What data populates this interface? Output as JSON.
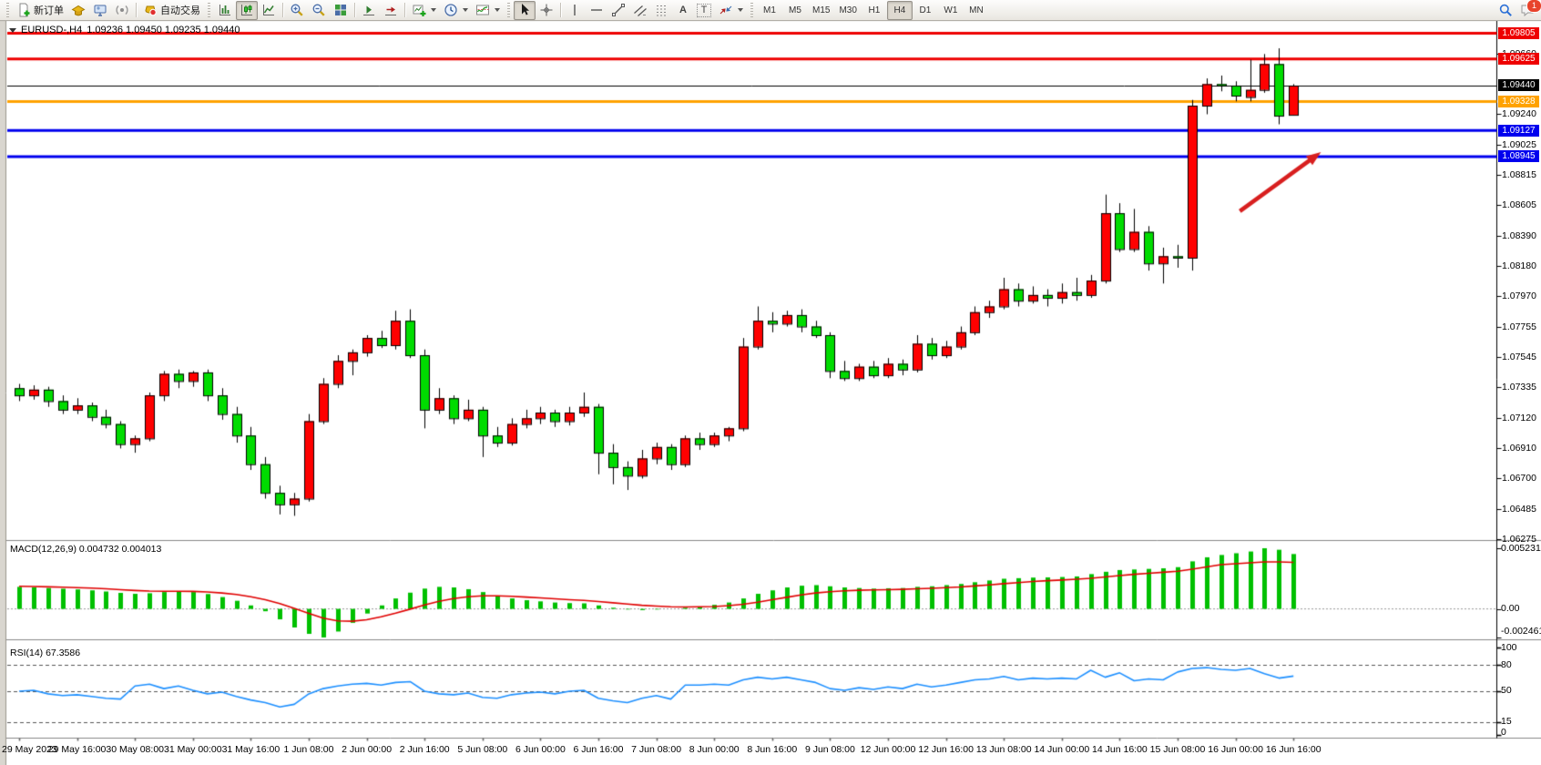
{
  "toolbar": {
    "new_order_label": "新订单",
    "autotrade_label": "自动交易",
    "timeframes": [
      {
        "label": "M1",
        "active": false
      },
      {
        "label": "M5",
        "active": false
      },
      {
        "label": "M15",
        "active": false
      },
      {
        "label": "M30",
        "active": false
      },
      {
        "label": "H1",
        "active": false
      },
      {
        "label": "H4",
        "active": true
      },
      {
        "label": "D1",
        "active": false
      },
      {
        "label": "W1",
        "active": false
      },
      {
        "label": "MN",
        "active": false
      }
    ],
    "notification_count": "1",
    "text_tool_glyph": "A",
    "label_tool_glyph": "T"
  },
  "window": {
    "title_symbol": "EURUSD-,H4",
    "title_ohlc": "1.09236 1.09450 1.09235 1.09440"
  },
  "chart_data": {
    "type": "candlestick",
    "symbol": "EURUSD-",
    "period": "H4",
    "current_bar": {
      "open": "1.09236",
      "high": "1.09450",
      "low": "1.09235",
      "close": "1.09440"
    },
    "price_ticks": [
      "1.09660",
      "1.09240",
      "1.09025",
      "1.08815",
      "1.08605",
      "1.08390",
      "1.08180",
      "1.07970",
      "1.07755",
      "1.07545",
      "1.07335",
      "1.07120",
      "1.06910",
      "1.06700",
      "1.06485",
      "1.06275"
    ],
    "levels": [
      {
        "price": "1.09805",
        "value": 1.09805,
        "color": "#ee0000"
      },
      {
        "price": "1.09625",
        "value": 1.09625,
        "color": "#ee0000"
      },
      {
        "price": "1.09328",
        "value": 1.09328,
        "color": "#ffa200"
      },
      {
        "price": "1.09127",
        "value": 1.09127,
        "color": "#0000ee"
      },
      {
        "price": "1.08945",
        "value": 1.08945,
        "color": "#0000ee"
      }
    ],
    "current_price": {
      "label": "1.09440",
      "value": 1.0944,
      "color": "#000000"
    },
    "up_color": "#ff0000",
    "down_color": "#00dc00",
    "x_labels": [
      "29 May 2023",
      "29 May 16:00",
      "30 May 08:00",
      "31 May 00:00",
      "31 May 16:00",
      "1 Jun 08:00",
      "2 Jun 00:00",
      "2 Jun 16:00",
      "5 Jun 08:00",
      "6 Jun 00:00",
      "6 Jun 16:00",
      "7 Jun 08:00",
      "8 Jun 00:00",
      "8 Jun 16:00",
      "9 Jun 08:00",
      "12 Jun 00:00",
      "12 Jun 16:00",
      "13 Jun 08:00",
      "14 Jun 00:00",
      "14 Jun 16:00",
      "15 Jun 08:00",
      "16 Jun 00:00",
      "16 Jun 16:00"
    ],
    "label_every_n_bars": 4,
    "candles": [
      [
        1.0733,
        1.0736,
        1.0724,
        1.0728
      ],
      [
        1.0728,
        1.0735,
        1.0725,
        1.0732
      ],
      [
        1.0732,
        1.0734,
        1.072,
        1.0724
      ],
      [
        1.0724,
        1.0728,
        1.0715,
        1.0718
      ],
      [
        1.0718,
        1.0726,
        1.0715,
        1.0721
      ],
      [
        1.0721,
        1.0723,
        1.071,
        1.0713
      ],
      [
        1.0713,
        1.0718,
        1.0705,
        1.0708
      ],
      [
        1.0708,
        1.071,
        1.0691,
        1.0694
      ],
      [
        1.0694,
        1.07,
        1.0688,
        1.0698
      ],
      [
        1.0698,
        1.073,
        1.0696,
        1.0728
      ],
      [
        1.0728,
        1.0745,
        1.0724,
        1.0743
      ],
      [
        1.0743,
        1.0746,
        1.0733,
        1.0738
      ],
      [
        1.0738,
        1.0745,
        1.0734,
        1.0744
      ],
      [
        1.0744,
        1.0746,
        1.0724,
        1.0728
      ],
      [
        1.0728,
        1.0733,
        1.0711,
        1.0715
      ],
      [
        1.0715,
        1.072,
        1.0695,
        1.07
      ],
      [
        1.07,
        1.0706,
        1.0676,
        1.068
      ],
      [
        1.068,
        1.0685,
        1.0656,
        1.066
      ],
      [
        1.066,
        1.0665,
        1.0645,
        1.0652
      ],
      [
        1.0652,
        1.066,
        1.0644,
        1.0656
      ],
      [
        1.0656,
        1.0715,
        1.0654,
        1.071
      ],
      [
        1.071,
        1.074,
        1.0708,
        1.0736
      ],
      [
        1.0736,
        1.0756,
        1.0733,
        1.0752
      ],
      [
        1.0752,
        1.076,
        1.0742,
        1.0758
      ],
      [
        1.0758,
        1.077,
        1.0755,
        1.0768
      ],
      [
        1.0768,
        1.0773,
        1.0761,
        1.0763
      ],
      [
        1.0763,
        1.0787,
        1.076,
        1.078
      ],
      [
        1.078,
        1.0788,
        1.0754,
        1.0756
      ],
      [
        1.0756,
        1.076,
        1.0705,
        1.0718
      ],
      [
        1.0718,
        1.0733,
        1.0715,
        1.0726
      ],
      [
        1.0726,
        1.0728,
        1.0708,
        1.0712
      ],
      [
        1.0712,
        1.0725,
        1.071,
        1.0718
      ],
      [
        1.0718,
        1.072,
        1.0685,
        1.07
      ],
      [
        1.07,
        1.0706,
        1.0692,
        1.0695
      ],
      [
        1.0695,
        1.0712,
        1.0693,
        1.0708
      ],
      [
        1.0708,
        1.0718,
        1.0705,
        1.0712
      ],
      [
        1.0712,
        1.072,
        1.0708,
        1.0716
      ],
      [
        1.0716,
        1.0718,
        1.0706,
        1.071
      ],
      [
        1.071,
        1.072,
        1.0707,
        1.0716
      ],
      [
        1.0716,
        1.073,
        1.0713,
        1.072
      ],
      [
        1.072,
        1.0722,
        1.0673,
        1.0688
      ],
      [
        1.0688,
        1.0694,
        1.0666,
        1.0678
      ],
      [
        1.0678,
        1.0682,
        1.0662,
        1.0672
      ],
      [
        1.0672,
        1.069,
        1.067,
        1.0684
      ],
      [
        1.0684,
        1.0695,
        1.068,
        1.0692
      ],
      [
        1.0692,
        1.0694,
        1.0676,
        1.068
      ],
      [
        1.068,
        1.07,
        1.0678,
        1.0698
      ],
      [
        1.0698,
        1.0702,
        1.069,
        1.0694
      ],
      [
        1.0694,
        1.0702,
        1.0692,
        1.07
      ],
      [
        1.07,
        1.0706,
        1.0696,
        1.0705
      ],
      [
        1.0705,
        1.0768,
        1.0703,
        1.0762
      ],
      [
        1.0762,
        1.079,
        1.076,
        1.078
      ],
      [
        1.078,
        1.0786,
        1.0772,
        1.0778
      ],
      [
        1.0778,
        1.0787,
        1.0776,
        1.0784
      ],
      [
        1.0784,
        1.0788,
        1.0772,
        1.0776
      ],
      [
        1.0776,
        1.078,
        1.0768,
        1.077
      ],
      [
        1.077,
        1.0772,
        1.074,
        1.0745
      ],
      [
        1.0745,
        1.0752,
        1.0738,
        1.074
      ],
      [
        1.074,
        1.075,
        1.0738,
        1.0748
      ],
      [
        1.0748,
        1.0752,
        1.074,
        1.0742
      ],
      [
        1.0742,
        1.0754,
        1.074,
        1.075
      ],
      [
        1.075,
        1.0753,
        1.0742,
        1.0746
      ],
      [
        1.0746,
        1.077,
        1.0744,
        1.0764
      ],
      [
        1.0764,
        1.0768,
        1.0753,
        1.0756
      ],
      [
        1.0756,
        1.0766,
        1.0754,
        1.0762
      ],
      [
        1.0762,
        1.0776,
        1.076,
        1.0772
      ],
      [
        1.0772,
        1.079,
        1.077,
        1.0786
      ],
      [
        1.0786,
        1.0794,
        1.0782,
        1.079
      ],
      [
        1.079,
        1.081,
        1.0788,
        1.0802
      ],
      [
        1.0802,
        1.0806,
        1.079,
        1.0794
      ],
      [
        1.0794,
        1.0804,
        1.0792,
        1.0798
      ],
      [
        1.0798,
        1.0802,
        1.079,
        1.0796
      ],
      [
        1.0796,
        1.0806,
        1.0792,
        1.08
      ],
      [
        1.08,
        1.081,
        1.0794,
        1.0798
      ],
      [
        1.0798,
        1.0812,
        1.0796,
        1.0808
      ],
      [
        1.0808,
        1.0868,
        1.0806,
        1.0855
      ],
      [
        1.0855,
        1.0862,
        1.0828,
        1.083
      ],
      [
        1.083,
        1.0858,
        1.0828,
        1.0842
      ],
      [
        1.0842,
        1.0846,
        1.0815,
        1.082
      ],
      [
        1.082,
        1.0831,
        1.0806,
        1.0825
      ],
      [
        1.0825,
        1.0833,
        1.0817,
        1.0824
      ],
      [
        1.0824,
        1.0934,
        1.0815,
        1.093
      ],
      [
        1.093,
        1.0949,
        1.0924,
        1.0945
      ],
      [
        1.0945,
        1.0951,
        1.094,
        1.0944
      ],
      [
        1.0944,
        1.0947,
        1.0933,
        1.0937
      ],
      [
        1.0936,
        1.0962,
        1.0933,
        1.0941
      ],
      [
        1.0941,
        1.0966,
        1.0939,
        1.0959
      ],
      [
        1.0959,
        1.097,
        1.0917,
        1.0923
      ],
      [
        1.09236,
        1.0945,
        1.09235,
        1.0944
      ]
    ],
    "macd": {
      "label": "MACD(12,26,9) 0.004732 0.004013",
      "scale": {
        "max_label": "0.005231",
        "zero_label": "0.00",
        "min_label": "-0.002461",
        "max_value": 0.005231,
        "min_value": -0.002461
      },
      "histogram_color": "#00c000",
      "signal_color": "#e00000",
      "histogram": [
        0.0019,
        0.00185,
        0.0018,
        0.00174,
        0.00168,
        0.0016,
        0.0015,
        0.00138,
        0.0013,
        0.00135,
        0.00145,
        0.00152,
        0.00145,
        0.00128,
        0.00102,
        0.0007,
        0.0003,
        -0.0002,
        -0.0009,
        -0.0016,
        -0.00215,
        -0.002461,
        -0.00195,
        -0.0012,
        -0.0004,
        0.0003,
        0.0009,
        0.0014,
        0.00175,
        0.0019,
        0.00185,
        0.0017,
        0.00145,
        0.00115,
        0.0009,
        0.00075,
        0.00065,
        0.00055,
        0.0005,
        0.00048,
        0.0003,
        0.0001,
        -5e-05,
        -0.0001,
        -5e-05,
        0.0,
        0.0001,
        0.0002,
        0.00035,
        0.00055,
        0.0009,
        0.0013,
        0.0016,
        0.00185,
        0.002,
        0.00205,
        0.00195,
        0.00185,
        0.0018,
        0.00175,
        0.00178,
        0.0018,
        0.0019,
        0.00195,
        0.00205,
        0.00215,
        0.0023,
        0.00245,
        0.0026,
        0.00265,
        0.0027,
        0.00272,
        0.00275,
        0.0028,
        0.003,
        0.0032,
        0.00335,
        0.0034,
        0.00345,
        0.0035,
        0.0036,
        0.0041,
        0.00445,
        0.00465,
        0.0048,
        0.00495,
        0.005231,
        0.0051,
        0.004732
      ],
      "signal": [
        0.00195,
        0.00193,
        0.0019,
        0.00187,
        0.00183,
        0.00179,
        0.00173,
        0.00166,
        0.00159,
        0.00154,
        0.00152,
        0.00152,
        0.00151,
        0.00146,
        0.00137,
        0.00124,
        0.00105,
        0.0008,
        0.00046,
        5e-05,
        -0.00039,
        -0.0008,
        -0.00103,
        -0.00106,
        -0.00093,
        -0.00068,
        -0.00037,
        -2e-05,
        0.00034,
        0.00065,
        0.00089,
        0.00105,
        0.00113,
        0.00113,
        0.00109,
        0.00102,
        0.00095,
        0.00087,
        0.00079,
        0.00073,
        0.00064,
        0.00053,
        0.00042,
        0.00031,
        0.00024,
        0.00019,
        0.00017,
        0.00018,
        0.00021,
        0.00028,
        0.0004,
        0.00058,
        0.00079,
        0.001,
        0.0012,
        0.00137,
        0.00148,
        0.00156,
        0.00161,
        0.00164,
        0.00166,
        0.00169,
        0.00173,
        0.00178,
        0.00183,
        0.00189,
        0.00198,
        0.00207,
        0.00218,
        0.00227,
        0.00236,
        0.00243,
        0.00249,
        0.00256,
        0.00264,
        0.00276,
        0.00287,
        0.00298,
        0.00307,
        0.00316,
        0.00325,
        0.00342,
        0.00362,
        0.00382,
        0.0039,
        0.00397,
        0.00405,
        0.00405,
        0.004013
      ]
    },
    "rsi": {
      "label": "RSI(14) 67.3586",
      "line_color": "#1e90ff",
      "levels": [
        80,
        50,
        15
      ],
      "scale_labels": [
        "100",
        "80",
        "50",
        "15",
        "0"
      ],
      "values": [
        50,
        51,
        47,
        45,
        46,
        44,
        42,
        41,
        56,
        58,
        53,
        56,
        51,
        47,
        49,
        44,
        40,
        37,
        32,
        35,
        47,
        53,
        56,
        58,
        59,
        57,
        60,
        61,
        50,
        47,
        46,
        48,
        43,
        42,
        46,
        48,
        49,
        47,
        50,
        51,
        42,
        39,
        37,
        42,
        45,
        41,
        57,
        57,
        58,
        57,
        63,
        66,
        64,
        66,
        63,
        60,
        53,
        51,
        54,
        52,
        55,
        53,
        58,
        55,
        57,
        60,
        63,
        64,
        67,
        63,
        65,
        64,
        65,
        64,
        74,
        66,
        71,
        62,
        64,
        63,
        72,
        76,
        77,
        75,
        74,
        76,
        70,
        65,
        67.36
      ]
    },
    "arrow_annotation": {
      "from": {
        "bar": 84.3,
        "price": 1.08564
      },
      "to": {
        "bar": 89.9,
        "price": 1.08976
      },
      "color": "#d81f1f"
    }
  }
}
